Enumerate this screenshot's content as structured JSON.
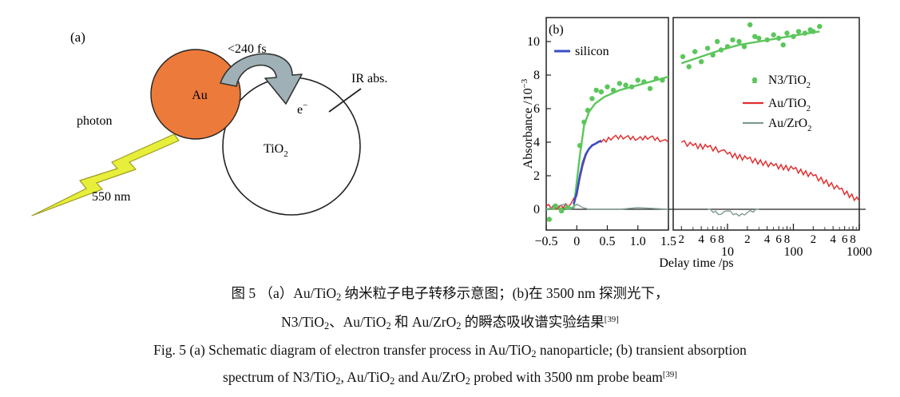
{
  "panel_a": {
    "panel_label": "(a)",
    "time_label": "<240 fs",
    "au_label": "Au",
    "tio2_base": "TiO",
    "tio2_sub": "2",
    "electron_base": "e",
    "electron_sup": "−",
    "ir_label": "IR abs.",
    "photon_label": "photon",
    "wavelength_label": "550 nm",
    "colors": {
      "au_fill": "#ec7a3a",
      "arrow_fill": "#9fb1b6",
      "bolt_fill": "#e8ef3a",
      "bolt_stroke": "#9a9a20"
    }
  },
  "chart_data": {
    "type": "line",
    "panel_label": "(b)",
    "ylabel_base": "Absorbance /10",
    "ylabel_exp": "−3",
    "xlabel": "Delay time /ps",
    "ylim": [
      -0.5,
      11
    ],
    "yticks": [
      "0",
      "2",
      "4",
      "6",
      "8",
      "10"
    ],
    "x_segments": [
      {
        "scale": "linear",
        "range": [
          -0.5,
          1.5
        ],
        "ticks": [
          "−0.5",
          "0",
          "0.5",
          "1.0",
          "1.5"
        ]
      },
      {
        "scale": "log",
        "range": [
          1.5,
          1000
        ],
        "minor_ticks": [
          "2",
          "4",
          "6",
          "8",
          "2",
          "4",
          "6",
          "8",
          "2",
          "4",
          "6",
          "8"
        ],
        "major_ticks": [
          "10",
          "100",
          "1000"
        ]
      }
    ],
    "inset_legend": {
      "label": "silicon",
      "color": "#3a4ec9"
    },
    "legend_position": "right",
    "series": [
      {
        "name": "N3/TiO₂",
        "name_base": "N3/TiO",
        "name_sub": "2",
        "color": "#5cc65c",
        "marker": "dot",
        "x": [
          -0.45,
          -0.35,
          -0.25,
          -0.15,
          0.05,
          0.12,
          0.18,
          0.25,
          0.32,
          0.4,
          0.5,
          0.6,
          0.7,
          0.8,
          0.9,
          1.0,
          1.1,
          1.2,
          1.3,
          1.4,
          2.1,
          2.6,
          3.2,
          4,
          5,
          6,
          7,
          8,
          10,
          12,
          15,
          18,
          22,
          26,
          30,
          40,
          50,
          60,
          70,
          80,
          100,
          120,
          150,
          180,
          200,
          250
        ],
        "y": [
          -0.6,
          0.2,
          -0.1,
          0.1,
          3.8,
          5.2,
          5.9,
          6.6,
          7.1,
          7.0,
          7.3,
          7.1,
          7.5,
          7.4,
          7.3,
          7.7,
          7.6,
          7.2,
          7.8,
          7.7,
          9.1,
          8.5,
          9.4,
          8.8,
          9.6,
          9.2,
          10.0,
          9.5,
          9.7,
          10.1,
          10.0,
          9.7,
          11.0,
          10.3,
          10.2,
          10.1,
          10.4,
          10.2,
          9.8,
          10.5,
          10.3,
          10.6,
          10.5,
          10.7,
          10.6,
          10.9
        ]
      },
      {
        "name": "Au/TiO₂",
        "name_base": "Au/TiO",
        "name_sub": "2",
        "color": "#e03030",
        "marker": "line",
        "x": [
          -0.5,
          -0.3,
          -0.1,
          0,
          0.05,
          0.1,
          0.15,
          0.2,
          0.3,
          0.4,
          0.6,
          0.8,
          1.0,
          1.2,
          1.4,
          1.5,
          2,
          3,
          5,
          8,
          10,
          20,
          50,
          100,
          200,
          500,
          1000
        ],
        "y": [
          0.2,
          0.1,
          0.3,
          0.8,
          1.8,
          2.6,
          3.2,
          3.6,
          3.9,
          4.0,
          4.3,
          4.3,
          4.2,
          4.3,
          4.1,
          4.0,
          4.0,
          3.8,
          3.7,
          3.5,
          3.3,
          3.0,
          2.6,
          2.4,
          2.0,
          1.2,
          0.5
        ]
      },
      {
        "name": "Au/ZrO₂",
        "name_base": "Au/ZrO",
        "name_sub": "2",
        "color": "#7f9c93",
        "marker": "line",
        "x": [
          -0.5,
          -0.3,
          -0.2,
          -0.1,
          0,
          0.1,
          0.2,
          0.4,
          0.7,
          1.0,
          1.5,
          5,
          8,
          10,
          15,
          20,
          30
        ],
        "y": [
          0.0,
          0.2,
          0.3,
          0.0,
          0.3,
          0.1,
          0.0,
          0.0,
          0.0,
          0.1,
          0.0,
          0.0,
          -0.3,
          -0.1,
          -0.4,
          -0.2,
          0.0
        ]
      },
      {
        "name": "silicon",
        "color": "#3a4ec9",
        "marker": "line",
        "x": [
          -0.05,
          0,
          0.05,
          0.1,
          0.15,
          0.2,
          0.25,
          0.3,
          0.35,
          0.4
        ],
        "y": [
          0.3,
          1.0,
          2.0,
          2.8,
          3.3,
          3.6,
          3.8,
          3.9,
          4.0,
          4.1
        ]
      }
    ]
  },
  "caption": {
    "zh_line1_prefix": "图 5 （a）Au/TiO",
    "zh_line1_sub": "2",
    "zh_line1_suffix": " 纳米粒子电子转移示意图；(b)在 3500 nm 探测光下，",
    "zh_line2_part1": "N3/TiO",
    "zh_line2_sub1": "2",
    "zh_line2_part2": "、Au/TiO",
    "zh_line2_sub2": "2",
    "zh_line2_part3": " 和 Au/ZrO",
    "zh_line2_sub3": "2",
    "zh_line2_part4": " 的瞬态吸收谱实验结果",
    "zh_line2_ref": "[39]",
    "en_line1_prefix": "Fig. 5  (a) Schematic diagram of electron transfer process in Au/TiO",
    "en_line1_sub": "2",
    "en_line1_suffix": " nanoparticle;  (b) transient absorption",
    "en_line2_part1": "spectrum of N3/TiO",
    "en_line2_sub1": "2",
    "en_line2_part2": ",  Au/TiO",
    "en_line2_sub2": "2",
    "en_line2_part3": " and Au/ZrO",
    "en_line2_sub3": "2",
    "en_line2_part4": " probed with 3500 nm probe beam",
    "en_line2_ref": "[39]"
  }
}
